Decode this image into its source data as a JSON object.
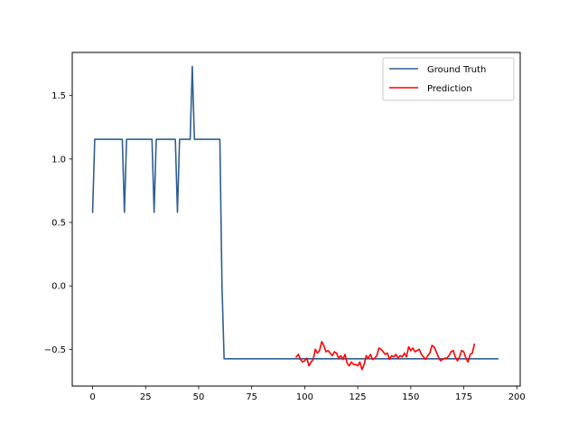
{
  "chart_data": {
    "type": "line",
    "title": "",
    "xlabel": "",
    "ylabel": "",
    "xlim": [
      -9.6,
      201.6
    ],
    "ylim": [
      -0.79,
      1.84
    ],
    "xticks": [
      0,
      25,
      50,
      75,
      100,
      125,
      150,
      175,
      200
    ],
    "yticks": [
      -0.5,
      0.0,
      0.5,
      1.0,
      1.5
    ],
    "xtick_labels": [
      "0",
      "25",
      "50",
      "75",
      "100",
      "125",
      "150",
      "175",
      "200"
    ],
    "ytick_labels": [
      "−0.5",
      "0.0",
      "0.5",
      "1.0",
      "1.5"
    ],
    "grid": false,
    "legend_position": "top-right",
    "series": [
      {
        "name": "Ground Truth",
        "color": "#2f5f91",
        "points": [
          [
            0,
            0.58
          ],
          [
            1,
            1.155
          ],
          [
            14,
            1.155
          ],
          [
            15,
            0.58
          ],
          [
            16,
            1.155
          ],
          [
            28,
            1.155
          ],
          [
            29,
            0.58
          ],
          [
            30,
            1.155
          ],
          [
            39,
            1.155
          ],
          [
            40,
            0.58
          ],
          [
            41,
            1.155
          ],
          [
            46,
            1.155
          ],
          [
            47,
            1.73
          ],
          [
            48,
            1.155
          ],
          [
            60,
            1.155
          ],
          [
            61,
            0.0
          ],
          [
            62,
            -0.575
          ],
          [
            191,
            -0.575
          ]
        ]
      },
      {
        "name": "Prediction",
        "color": "#ff0000",
        "x_start": 96,
        "values": [
          -0.56,
          -0.54,
          -0.58,
          -0.6,
          -0.59,
          -0.57,
          -0.63,
          -0.6,
          -0.58,
          -0.5,
          -0.53,
          -0.51,
          -0.44,
          -0.47,
          -0.52,
          -0.51,
          -0.53,
          -0.55,
          -0.52,
          -0.53,
          -0.57,
          -0.55,
          -0.58,
          -0.54,
          -0.61,
          -0.63,
          -0.6,
          -0.62,
          -0.62,
          -0.63,
          -0.6,
          -0.66,
          -0.62,
          -0.55,
          -0.57,
          -0.54,
          -0.58,
          -0.57,
          -0.55,
          -0.49,
          -0.5,
          -0.52,
          -0.54,
          -0.53,
          -0.58,
          -0.55,
          -0.56,
          -0.54,
          -0.57,
          -0.55,
          -0.56,
          -0.53,
          -0.56,
          -0.48,
          -0.51,
          -0.49,
          -0.52,
          -0.51,
          -0.5,
          -0.54,
          -0.56,
          -0.58,
          -0.55,
          -0.53,
          -0.47,
          -0.48,
          -0.52,
          -0.56,
          -0.59,
          -0.58,
          -0.57,
          -0.57,
          -0.55,
          -0.52,
          -0.51,
          -0.56,
          -0.59,
          -0.56,
          -0.51,
          -0.52,
          -0.57,
          -0.6,
          -0.54,
          -0.53,
          -0.46
        ]
      }
    ]
  }
}
